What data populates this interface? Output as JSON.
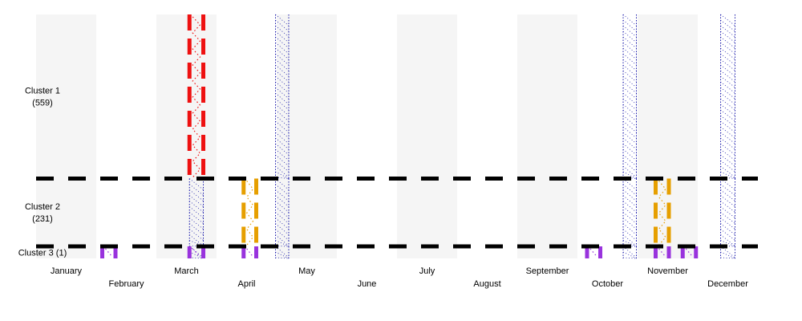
{
  "chart_data": {
    "type": "timeline",
    "title": "",
    "x_unit": "month",
    "x_range": [
      1,
      13
    ],
    "months": [
      "January",
      "February",
      "March",
      "April",
      "May",
      "June",
      "July",
      "August",
      "September",
      "October",
      "November",
      "December"
    ],
    "clusters": [
      {
        "name": "Cluster 1",
        "count": "(559)",
        "label_lines": [
          "Cluster 1",
          "(559)"
        ]
      },
      {
        "name": "Cluster 2",
        "count": "(231)",
        "label_lines": [
          "Cluster 2",
          "(231)"
        ]
      },
      {
        "name": "Cluster 3",
        "count": "(1)",
        "label_lines": [
          "Cluster 3 (1)"
        ]
      }
    ],
    "cluster_height_share": [
      559,
      231,
      41
    ],
    "shaded_month_columns": [
      1,
      3,
      5,
      7,
      9,
      11
    ],
    "shade_color": "#f5f5f5",
    "separator_color": "#000000",
    "intervals": [
      {
        "cluster": 1,
        "start": 3.55,
        "end": 3.78,
        "color": "#ee1111",
        "style": "red-dashed-bars"
      },
      {
        "cluster": 2,
        "start": 4.45,
        "end": 4.66,
        "color": "#e69f00",
        "style": "orange-dashed-bars"
      },
      {
        "cluster": 2,
        "start": 11.3,
        "end": 11.52,
        "color": "#e69f00",
        "style": "orange-dashed-bars"
      },
      {
        "cluster": 3,
        "start": 2.1,
        "end": 2.32,
        "color": "#9933dd",
        "style": "purple-bars"
      },
      {
        "cluster": 3,
        "start": 3.55,
        "end": 3.78,
        "color": "#9933dd",
        "style": "purple-bars"
      },
      {
        "cluster": 3,
        "start": 4.45,
        "end": 4.66,
        "color": "#9933dd",
        "style": "purple-bars"
      },
      {
        "cluster": 3,
        "start": 10.16,
        "end": 10.38,
        "color": "#9933dd",
        "style": "purple-bars"
      },
      {
        "cluster": 3,
        "start": 11.3,
        "end": 11.52,
        "color": "#9933dd",
        "style": "purple-bars"
      },
      {
        "cluster": 3,
        "start": 11.75,
        "end": 11.97,
        "color": "#9933dd",
        "style": "purple-bars"
      }
    ],
    "dotted_bands": [
      {
        "start": 3.55,
        "end": 3.78,
        "color": "#1a1aaa",
        "clusters": [
          2,
          3
        ]
      },
      {
        "start": 4.98,
        "end": 5.2,
        "color": "#1a1aaa",
        "clusters": [
          1,
          2,
          3
        ]
      },
      {
        "start": 10.76,
        "end": 10.98,
        "color": "#1a1aaa",
        "clusters": [
          1,
          2,
          3
        ]
      },
      {
        "start": 12.38,
        "end": 12.62,
        "color": "#1a1aaa",
        "clusters": [
          1,
          2,
          3
        ]
      }
    ],
    "grid": false,
    "legend": "none"
  }
}
